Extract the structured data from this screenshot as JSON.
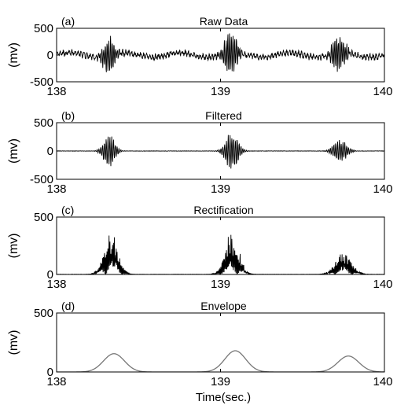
{
  "figure": {
    "xlabel": "Time(sec.)"
  },
  "chart_data": [
    {
      "type": "line",
      "panel": "(a)",
      "title": "Raw Data",
      "ylabel": "(mv)",
      "xlim": [
        138,
        140
      ],
      "ylim": [
        -500,
        500
      ],
      "x_ticks": [
        "138",
        "139",
        "140"
      ],
      "y_ticks": [
        "500",
        "0",
        "-500"
      ],
      "line_color": "#000000",
      "signal": {
        "baseline_noise_amplitude_mv": 60,
        "bursts": [
          {
            "center_s": 138.32,
            "width_s": 0.045,
            "amplitude_mv": 280
          },
          {
            "center_s": 139.06,
            "width_s": 0.05,
            "amplitude_mv": 340
          },
          {
            "center_s": 139.72,
            "width_s": 0.05,
            "amplitude_mv": 300
          }
        ]
      }
    },
    {
      "type": "line",
      "panel": "(b)",
      "title": "Filtered",
      "ylabel": "(mv)",
      "xlim": [
        138,
        140
      ],
      "ylim": [
        -500,
        500
      ],
      "x_ticks": [
        "138",
        "139",
        "140"
      ],
      "y_ticks": [
        "500",
        "0",
        "-500"
      ],
      "line_color": "#000000",
      "signal": {
        "bursts": [
          {
            "center_s": 138.32,
            "width_s": 0.045,
            "amplitude_mv": 240
          },
          {
            "center_s": 139.07,
            "width_s": 0.05,
            "amplitude_mv": 280
          },
          {
            "center_s": 139.73,
            "width_s": 0.055,
            "amplitude_mv": 170
          }
        ]
      }
    },
    {
      "type": "line",
      "panel": "(c)",
      "title": "Rectification",
      "ylabel": "(mv)",
      "xlim": [
        138,
        140
      ],
      "ylim": [
        0,
        500
      ],
      "x_ticks": [
        "138",
        "139",
        "140"
      ],
      "y_ticks": [
        "500",
        "0"
      ],
      "line_color": "#000000",
      "signal": {
        "bursts": [
          {
            "center_s": 138.33,
            "width_s": 0.06,
            "amplitude_mv": 330
          },
          {
            "center_s": 139.07,
            "width_s": 0.06,
            "amplitude_mv": 330
          },
          {
            "center_s": 139.75,
            "width_s": 0.07,
            "amplitude_mv": 170
          }
        ]
      }
    },
    {
      "type": "line",
      "panel": "(d)",
      "title": "Envelope",
      "ylabel": "(mv)",
      "xlim": [
        138,
        140
      ],
      "ylim": [
        0,
        500
      ],
      "x_ticks": [
        "138",
        "139",
        "140"
      ],
      "y_ticks": [
        "500",
        "0"
      ],
      "line_color": "#777777",
      "signal": {
        "bumps": [
          {
            "center_s": 138.35,
            "width_s": 0.09,
            "peak_mv": 155
          },
          {
            "center_s": 139.09,
            "width_s": 0.09,
            "peak_mv": 180
          },
          {
            "center_s": 139.78,
            "width_s": 0.09,
            "peak_mv": 135
          }
        ]
      }
    }
  ]
}
